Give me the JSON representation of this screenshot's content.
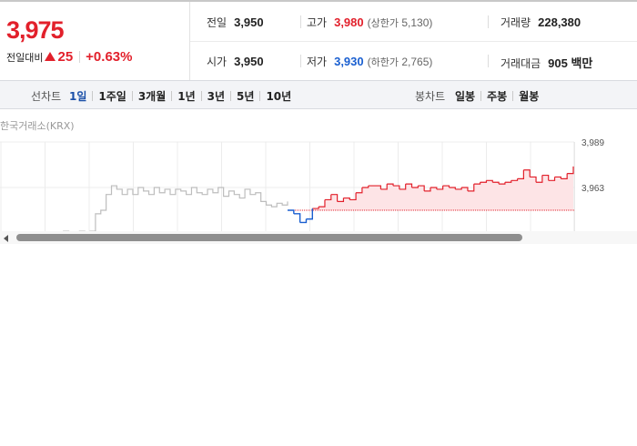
{
  "price": {
    "current": "3,975",
    "change_label": "전일대비",
    "change_value": "25",
    "change_rate": "+0.63%",
    "direction": "up",
    "up_color": "#e2202b"
  },
  "stats": {
    "prev_close": {
      "label": "전일",
      "value": "3,950"
    },
    "open": {
      "label": "시가",
      "value": "3,950"
    },
    "high": {
      "label": "고가",
      "value": "3,980",
      "sub_label": "상한가",
      "sub_value": "5,130"
    },
    "low": {
      "label": "저가",
      "value": "3,930",
      "sub_label": "하한가",
      "sub_value": "2,765"
    },
    "volume": {
      "label": "거래량",
      "value": "228,380"
    },
    "amount": {
      "label": "거래대금",
      "value": "905 백만"
    }
  },
  "period_bar": {
    "line_label": "선차트",
    "line_items": [
      "1일",
      "1주일",
      "3개월",
      "1년",
      "3년",
      "5년",
      "10년"
    ],
    "active_index": 0,
    "candle_label": "봉차트",
    "candle_items": [
      "일봉",
      "주봉",
      "월봉"
    ]
  },
  "chart_source": "한국거래소(KRX)",
  "chart_data": {
    "type": "line",
    "y_ticks": [
      "3,989",
      "3,963"
    ],
    "baseline": 3950,
    "prev_day_series": [
      3937,
      3937,
      3938,
      3937,
      3937,
      3938,
      3937,
      3938,
      3948,
      3950,
      3959,
      3964,
      3962,
      3959,
      3962,
      3959,
      3963,
      3961,
      3959,
      3963,
      3960,
      3962,
      3959,
      3962,
      3961,
      3959,
      3963,
      3960,
      3959,
      3962,
      3960,
      3963,
      3958,
      3961,
      3959,
      3957,
      3962,
      3959,
      3960,
      3955,
      3953,
      3952,
      3954,
      3953,
      3955
    ],
    "today_series": [
      3950,
      3948,
      3943,
      3945,
      3951,
      3952,
      3956,
      3959,
      3955,
      3957,
      3956,
      3960,
      3963,
      3964,
      3964,
      3962,
      3965,
      3964,
      3962,
      3965,
      3963,
      3964,
      3961,
      3963,
      3962,
      3964,
      3963,
      3962,
      3963,
      3961,
      3965,
      3966,
      3967,
      3966,
      3965,
      3966,
      3967,
      3968,
      3973,
      3969,
      3966,
      3970,
      3967,
      3969,
      3968,
      3971,
      3975
    ],
    "up_color": "#e2202b",
    "down_color": "#1a5fd0",
    "prev_color": "#bdbdbd",
    "fill_color": "#fde4e6",
    "grid": true
  }
}
